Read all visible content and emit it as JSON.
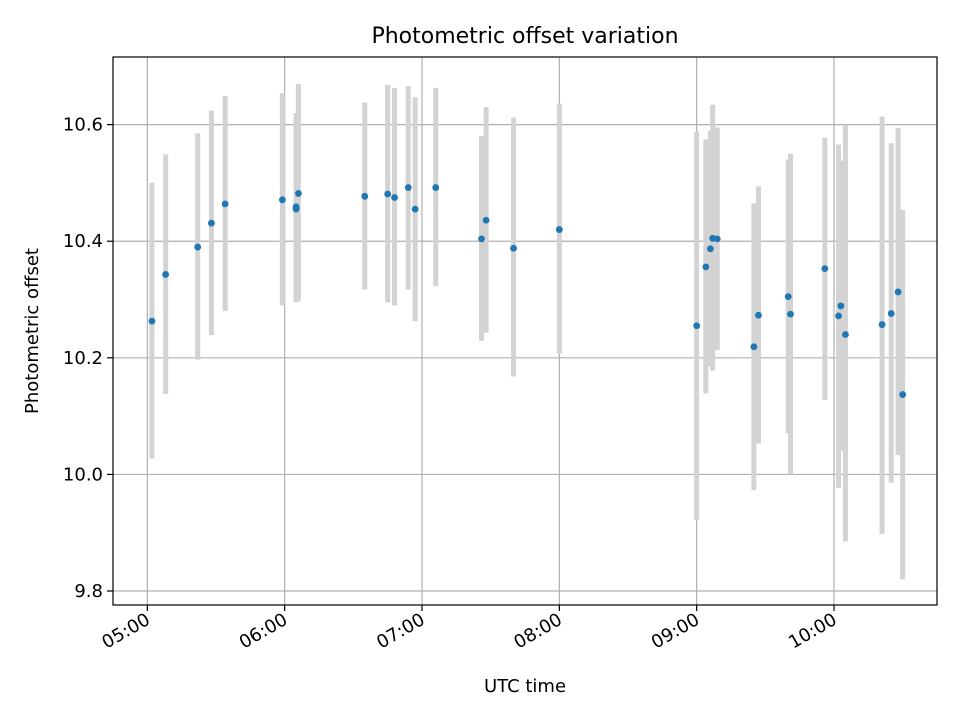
{
  "chart_data": {
    "type": "scatter",
    "title": "Photometric offset variation",
    "xlabel": "UTC time",
    "ylabel": "Photometric offset",
    "xlim_minutes": [
      285.0,
      645.0
    ],
    "ylim": [
      9.776,
      10.716
    ],
    "grid": true,
    "x_ticks": [
      {
        "label": "05:00",
        "minutes": 300
      },
      {
        "label": "06:00",
        "minutes": 360
      },
      {
        "label": "07:00",
        "minutes": 420
      },
      {
        "label": "08:00",
        "minutes": 480
      },
      {
        "label": "09:00",
        "minutes": 540
      },
      {
        "label": "10:00",
        "minutes": 600
      }
    ],
    "y_ticks": [
      {
        "label": "9.8",
        "value": 9.8
      },
      {
        "label": "10.0",
        "value": 10.0
      },
      {
        "label": "10.2",
        "value": 10.2
      },
      {
        "label": "10.4",
        "value": 10.4
      },
      {
        "label": "10.6",
        "value": 10.6
      }
    ],
    "colors": {
      "points": "#1f77b4",
      "errorbars": "#d3d3d3",
      "grid": "#b0b0b0"
    },
    "points": [
      {
        "x": "05:02",
        "y": 10.263,
        "ylo": 10.027,
        "yhi": 10.5
      },
      {
        "x": "05:08",
        "y": 10.343,
        "ylo": 10.138,
        "yhi": 10.549
      },
      {
        "x": "05:22",
        "y": 10.39,
        "ylo": 10.197,
        "yhi": 10.585
      },
      {
        "x": "05:28",
        "y": 10.431,
        "ylo": 10.239,
        "yhi": 10.624
      },
      {
        "x": "05:34",
        "y": 10.464,
        "ylo": 10.28,
        "yhi": 10.649
      },
      {
        "x": "05:59",
        "y": 10.471,
        "ylo": 10.29,
        "yhi": 10.654
      },
      {
        "x": "06:05",
        "y": 10.455,
        "ylo": 10.295,
        "yhi": 10.615
      },
      {
        "x": "06:05",
        "y": 10.459,
        "ylo": 10.297,
        "yhi": 10.62
      },
      {
        "x": "06:06",
        "y": 10.482,
        "ylo": 10.297,
        "yhi": 10.67
      },
      {
        "x": "06:35",
        "y": 10.477,
        "ylo": 10.317,
        "yhi": 10.638
      },
      {
        "x": "06:45",
        "y": 10.481,
        "ylo": 10.295,
        "yhi": 10.668
      },
      {
        "x": "06:48",
        "y": 10.475,
        "ylo": 10.29,
        "yhi": 10.663
      },
      {
        "x": "06:54",
        "y": 10.492,
        "ylo": 10.317,
        "yhi": 10.666
      },
      {
        "x": "06:57",
        "y": 10.455,
        "ylo": 10.263,
        "yhi": 10.647
      },
      {
        "x": "07:06",
        "y": 10.492,
        "ylo": 10.323,
        "yhi": 10.663
      },
      {
        "x": "07:26",
        "y": 10.404,
        "ylo": 10.229,
        "yhi": 10.58
      },
      {
        "x": "07:28",
        "y": 10.436,
        "ylo": 10.243,
        "yhi": 10.63
      },
      {
        "x": "07:40",
        "y": 10.388,
        "ylo": 10.168,
        "yhi": 10.612
      },
      {
        "x": "08:00",
        "y": 10.42,
        "ylo": 10.207,
        "yhi": 10.636
      },
      {
        "x": "09:00",
        "y": 10.255,
        "ylo": 9.922,
        "yhi": 10.588
      },
      {
        "x": "09:04",
        "y": 10.356,
        "ylo": 10.139,
        "yhi": 10.575
      },
      {
        "x": "09:06",
        "y": 10.387,
        "ylo": 10.185,
        "yhi": 10.59
      },
      {
        "x": "09:07",
        "y": 10.405,
        "ylo": 10.178,
        "yhi": 10.634
      },
      {
        "x": "09:09",
        "y": 10.404,
        "ylo": 10.213,
        "yhi": 10.595
      },
      {
        "x": "09:25",
        "y": 10.219,
        "ylo": 9.973,
        "yhi": 10.465
      },
      {
        "x": "09:27",
        "y": 10.273,
        "ylo": 10.053,
        "yhi": 10.494
      },
      {
        "x": "09:40",
        "y": 10.305,
        "ylo": 10.071,
        "yhi": 10.54
      },
      {
        "x": "09:41",
        "y": 10.275,
        "ylo": 10.0,
        "yhi": 10.55
      },
      {
        "x": "09:56",
        "y": 10.353,
        "ylo": 10.128,
        "yhi": 10.578
      },
      {
        "x": "10:02",
        "y": 10.272,
        "ylo": 9.977,
        "yhi": 10.566
      },
      {
        "x": "10:03",
        "y": 10.289,
        "ylo": 10.04,
        "yhi": 10.538
      },
      {
        "x": "10:05",
        "y": 10.24,
        "ylo": 9.885,
        "yhi": 10.6
      },
      {
        "x": "10:21",
        "y": 10.257,
        "ylo": 9.898,
        "yhi": 10.614
      },
      {
        "x": "10:25",
        "y": 10.276,
        "ylo": 9.986,
        "yhi": 10.568
      },
      {
        "x": "10:28",
        "y": 10.313,
        "ylo": 10.033,
        "yhi": 10.594
      },
      {
        "x": "10:30",
        "y": 10.137,
        "ylo": 9.82,
        "yhi": 10.454
      }
    ]
  }
}
